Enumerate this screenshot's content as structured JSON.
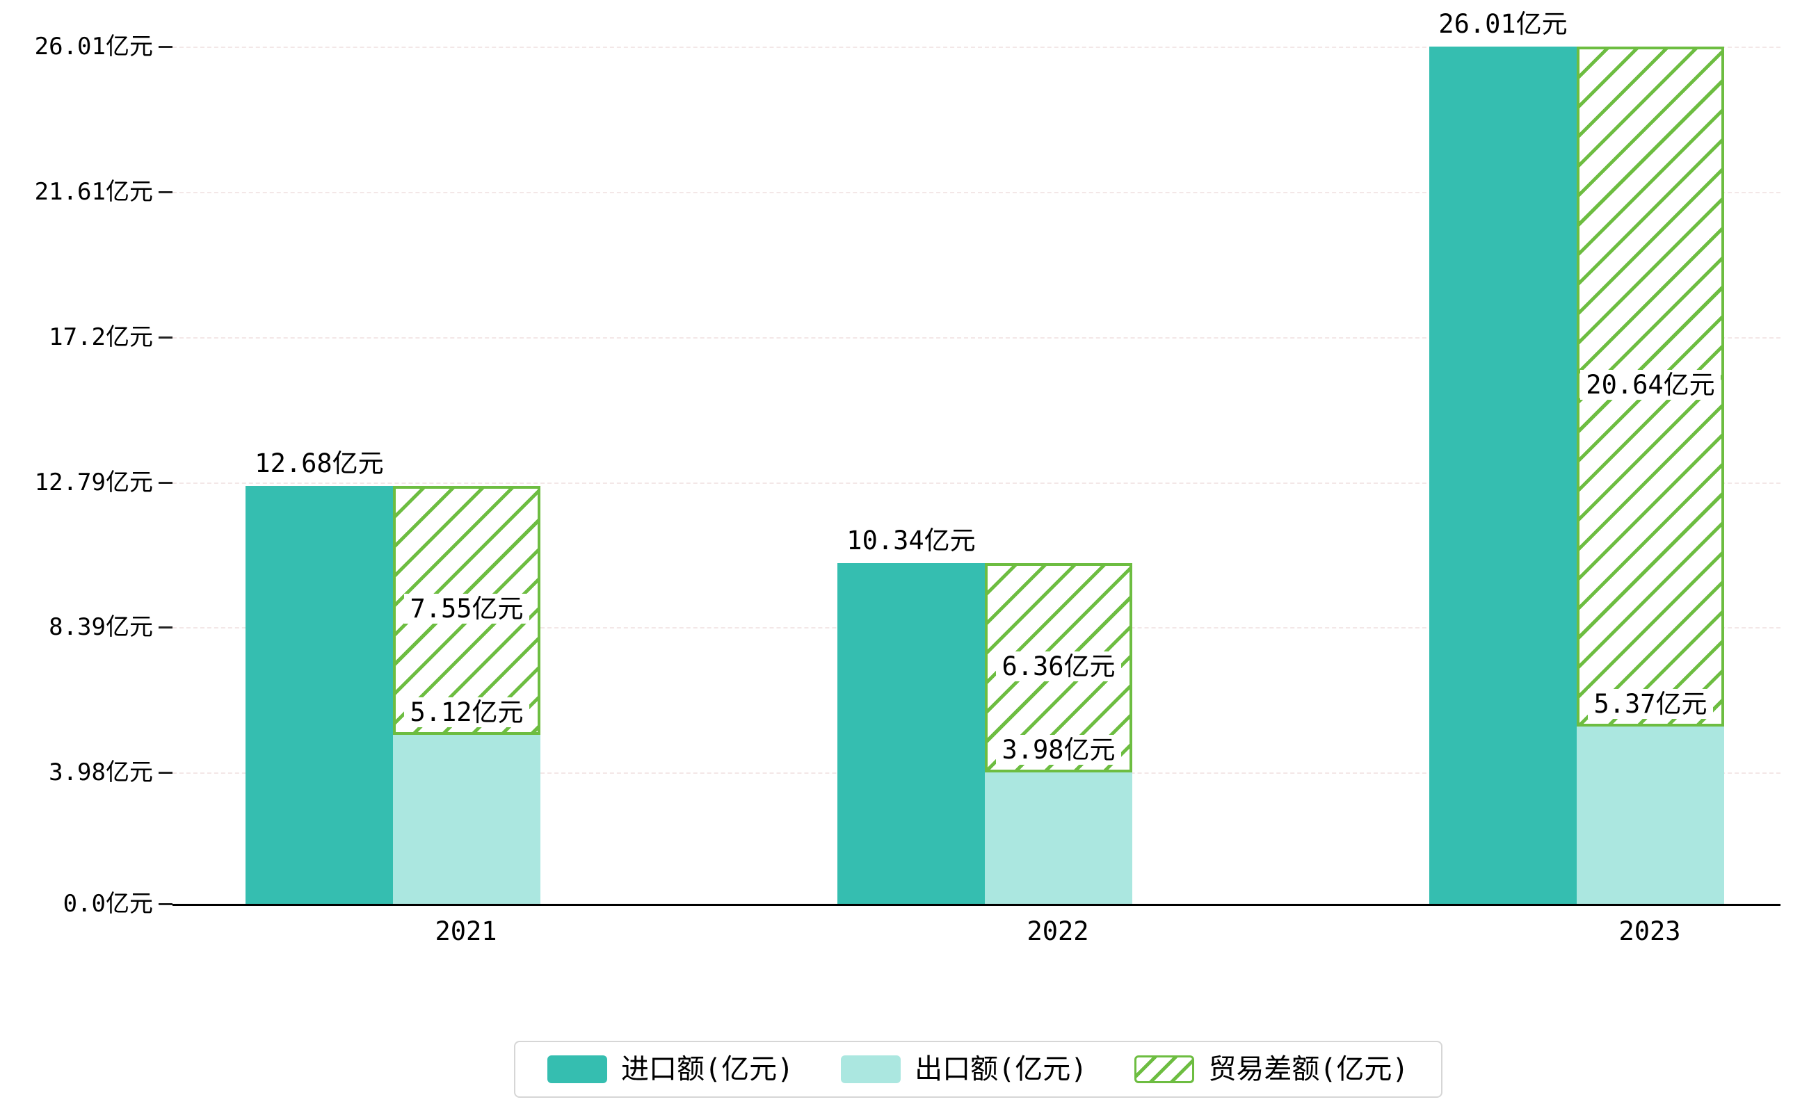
{
  "chart_data": {
    "type": "bar",
    "title": "",
    "categories": [
      "2021",
      "2022",
      "2023"
    ],
    "series": [
      {
        "name": "进口额(亿元)",
        "role": "import",
        "style": "solid",
        "color": "#35beb0",
        "values": [
          12.68,
          10.34,
          26.01
        ],
        "labels": [
          "12.68亿元",
          "10.34亿元",
          "26.01亿元"
        ]
      },
      {
        "name": "出口额(亿元)",
        "role": "export",
        "style": "solid",
        "color": "#abe7e0",
        "values": [
          5.12,
          3.98,
          5.37
        ],
        "labels": [
          "5.12亿元",
          "3.98亿元",
          "5.37亿元"
        ]
      },
      {
        "name": "贸易差额(亿元)",
        "role": "trade-balance",
        "style": "hatched",
        "color": "#6dbd41",
        "stacked_on": "出口额(亿元)",
        "values": [
          7.55,
          6.36,
          20.64
        ],
        "labels": [
          "7.55亿元",
          "6.36亿元",
          "20.64亿元"
        ]
      }
    ],
    "y_axis": {
      "unit": "亿元",
      "max": 26.01,
      "ticks": [
        0.0,
        3.98,
        8.39,
        12.79,
        17.2,
        21.61,
        26.01
      ],
      "tick_labels": [
        "0.0亿元",
        "3.98亿元",
        "8.39亿元",
        "12.79亿元",
        "17.2亿元",
        "21.61亿元",
        "26.01亿元"
      ]
    },
    "legend": {
      "position": "bottom",
      "items": [
        "进口额(亿元)",
        "出口额(亿元)",
        "贸易差额(亿元)"
      ]
    },
    "grid": "horizontal-dashed"
  },
  "colors": {
    "import_bar": "#35beb0",
    "export_bar": "#abe7e0",
    "balance_hatch": "#6dbd41",
    "axis_line": "#000000",
    "gridline": "#f3e7e7",
    "background": "#ffffff"
  }
}
